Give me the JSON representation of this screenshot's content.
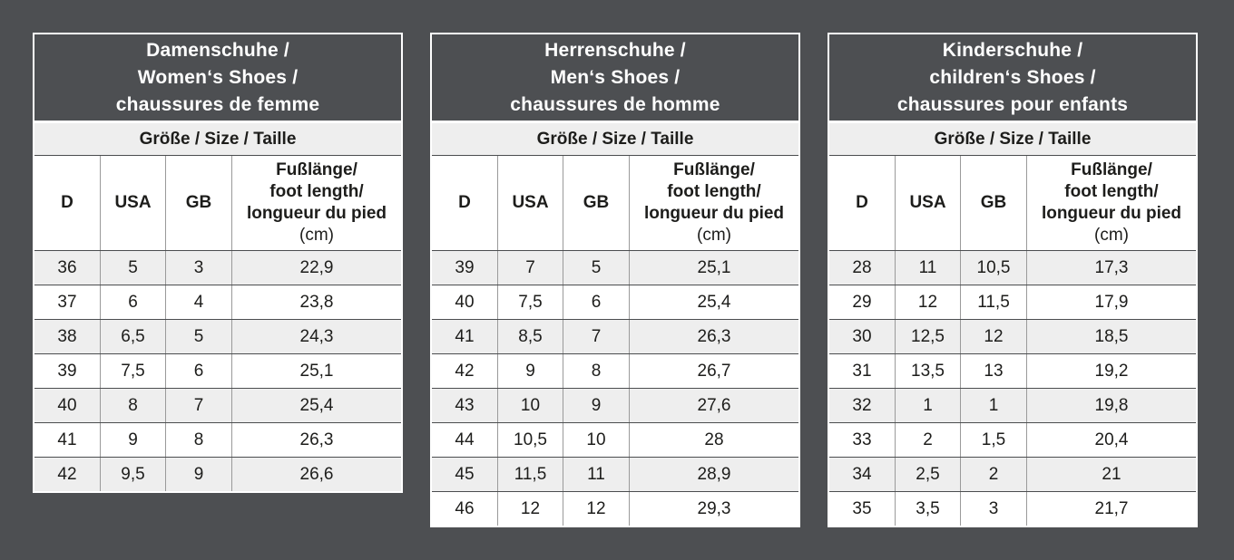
{
  "page": {
    "background_color": "#4d4f52",
    "row_highlight_color": "#eeeeee"
  },
  "tables": [
    {
      "id": "women",
      "title_lines": [
        "Damenschuhe /",
        "Women‘s Shoes /",
        "chaussures de femme"
      ],
      "size_label": "Größe / Size / Taille",
      "columns": [
        "D",
        "USA",
        "GB"
      ],
      "foot_length_lines": [
        "Fußlänge/",
        "foot length/",
        "longueur du pied"
      ],
      "foot_length_unit": "(cm)",
      "rows": [
        [
          "36",
          "5",
          "3",
          "22,9"
        ],
        [
          "37",
          "6",
          "4",
          "23,8"
        ],
        [
          "38",
          "6,5",
          "5",
          "24,3"
        ],
        [
          "39",
          "7,5",
          "6",
          "25,1"
        ],
        [
          "40",
          "8",
          "7",
          "25,4"
        ],
        [
          "41",
          "9",
          "8",
          "26,3"
        ],
        [
          "42",
          "9,5",
          "9",
          "26,6"
        ]
      ]
    },
    {
      "id": "men",
      "title_lines": [
        "Herrenschuhe /",
        "Men‘s Shoes /",
        "chaussures de homme"
      ],
      "size_label": "Größe / Size / Taille",
      "columns": [
        "D",
        "USA",
        "GB"
      ],
      "foot_length_lines": [
        "Fußlänge/",
        "foot length/",
        "longueur du pied"
      ],
      "foot_length_unit": "(cm)",
      "rows": [
        [
          "39",
          "7",
          "5",
          "25,1"
        ],
        [
          "40",
          "7,5",
          "6",
          "25,4"
        ],
        [
          "41",
          "8,5",
          "7",
          "26,3"
        ],
        [
          "42",
          "9",
          "8",
          "26,7"
        ],
        [
          "43",
          "10",
          "9",
          "27,6"
        ],
        [
          "44",
          "10,5",
          "10",
          "28"
        ],
        [
          "45",
          "11,5",
          "11",
          "28,9"
        ],
        [
          "46",
          "12",
          "12",
          "29,3"
        ]
      ]
    },
    {
      "id": "children",
      "title_lines": [
        "Kinderschuhe /",
        "children‘s Shoes /",
        "chaussures pour enfants"
      ],
      "size_label": "Größe / Size / Taille",
      "columns": [
        "D",
        "USA",
        "GB"
      ],
      "foot_length_lines": [
        "Fußlänge/",
        "foot length/",
        "longueur du pied"
      ],
      "foot_length_unit": "(cm)",
      "rows": [
        [
          "28",
          "11",
          "10,5",
          "17,3"
        ],
        [
          "29",
          "12",
          "11,5",
          "17,9"
        ],
        [
          "30",
          "12,5",
          "12",
          "18,5"
        ],
        [
          "31",
          "13,5",
          "13",
          "19,2"
        ],
        [
          "32",
          "1",
          "1",
          "19,8"
        ],
        [
          "33",
          "2",
          "1,5",
          "20,4"
        ],
        [
          "34",
          "2,5",
          "2",
          "21"
        ],
        [
          "35",
          "3,5",
          "3",
          "21,7"
        ]
      ]
    }
  ]
}
